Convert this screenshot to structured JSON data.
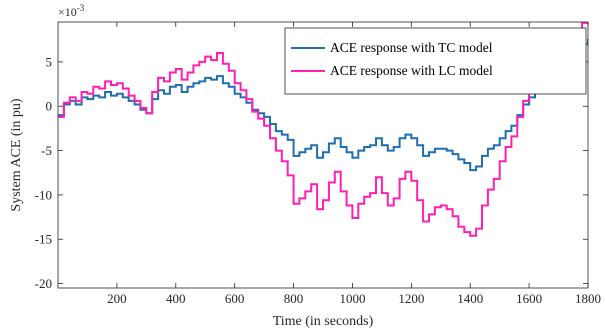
{
  "chart_data": {
    "type": "line",
    "title": "",
    "xlabel": "Time (in seconds)",
    "ylabel": "System ACE  (in pu)",
    "exponent": "×10",
    "exponent_power": "-3",
    "xlim": [
      0,
      1800
    ],
    "ylim": [
      -20.5,
      9.5
    ],
    "xticks": [
      200,
      400,
      600,
      800,
      1000,
      1200,
      1400,
      1600,
      1800
    ],
    "yticks": [
      -20,
      -15,
      -10,
      -5,
      0,
      5
    ],
    "grid": false,
    "legend_position": "top-right",
    "series": [
      {
        "name": "ACE response with TC model",
        "color": "#1f6fb0",
        "x": [
          0,
          20,
          40,
          60,
          80,
          100,
          120,
          140,
          160,
          180,
          200,
          220,
          240,
          260,
          280,
          300,
          320,
          340,
          360,
          380,
          400,
          420,
          440,
          460,
          480,
          500,
          520,
          540,
          560,
          580,
          600,
          620,
          640,
          660,
          680,
          700,
          720,
          740,
          760,
          780,
          800,
          820,
          840,
          860,
          880,
          900,
          920,
          940,
          960,
          980,
          1000,
          1020,
          1040,
          1060,
          1080,
          1100,
          1120,
          1140,
          1160,
          1180,
          1200,
          1220,
          1240,
          1260,
          1280,
          1300,
          1320,
          1340,
          1360,
          1380,
          1400,
          1420,
          1440,
          1460,
          1480,
          1500,
          1520,
          1540,
          1560,
          1580,
          1600,
          1620,
          1640,
          1660,
          1680,
          1700,
          1720,
          1740,
          1760,
          1780,
          1800
        ],
        "values": [
          -1.0,
          0.2,
          0.6,
          0.2,
          1.0,
          0.8,
          1.2,
          1.0,
          1.6,
          1.2,
          1.4,
          1.0,
          0.6,
          0.2,
          -0.4,
          -0.8,
          0.8,
          1.8,
          1.4,
          2.2,
          2.4,
          1.6,
          2.2,
          2.6,
          2.8,
          3.2,
          3.0,
          3.4,
          2.6,
          2.2,
          1.4,
          1.0,
          0.4,
          -0.4,
          -0.8,
          -1.2,
          -2.0,
          -2.8,
          -3.2,
          -3.8,
          -5.6,
          -5.2,
          -4.8,
          -4.4,
          -5.8,
          -5.2,
          -4.2,
          -3.6,
          -4.6,
          -5.2,
          -5.8,
          -5.0,
          -4.6,
          -4.4,
          -3.6,
          -4.4,
          -5.0,
          -4.6,
          -3.6,
          -3.2,
          -3.6,
          -4.4,
          -5.6,
          -5.2,
          -4.8,
          -4.8,
          -5.0,
          -5.4,
          -6.0,
          -6.4,
          -7.2,
          -6.8,
          -5.6,
          -4.8,
          -4.4,
          -3.6,
          -2.8,
          -2.2,
          -1.0,
          0.2,
          1.0,
          1.8,
          2.0,
          2.4,
          3.0,
          3.8,
          4.4,
          5.0,
          6.0,
          7.0,
          7.6
        ]
      },
      {
        "name": "ACE response with LC model",
        "color": "#ff1fb4",
        "x": [
          0,
          20,
          40,
          60,
          80,
          100,
          120,
          140,
          160,
          180,
          200,
          220,
          240,
          260,
          280,
          300,
          320,
          340,
          360,
          380,
          400,
          420,
          440,
          460,
          480,
          500,
          520,
          540,
          560,
          580,
          600,
          620,
          640,
          660,
          680,
          700,
          720,
          740,
          760,
          780,
          800,
          820,
          840,
          860,
          880,
          900,
          920,
          940,
          960,
          980,
          1000,
          1020,
          1040,
          1060,
          1080,
          1100,
          1120,
          1140,
          1160,
          1180,
          1200,
          1220,
          1240,
          1260,
          1280,
          1300,
          1320,
          1340,
          1360,
          1380,
          1400,
          1420,
          1440,
          1460,
          1480,
          1500,
          1520,
          1540,
          1560,
          1580,
          1600,
          1620,
          1640,
          1660,
          1680,
          1700,
          1720,
          1740,
          1760,
          1780,
          1800
        ],
        "values": [
          -1.2,
          0.4,
          1.0,
          0.6,
          1.6,
          1.4,
          2.2,
          2.0,
          2.8,
          2.4,
          2.6,
          2.0,
          1.2,
          0.6,
          -0.2,
          -0.8,
          1.6,
          3.2,
          2.8,
          3.8,
          4.2,
          3.0,
          3.8,
          4.6,
          5.0,
          5.6,
          5.2,
          6.0,
          4.8,
          4.0,
          2.6,
          1.8,
          0.8,
          -0.6,
          -1.4,
          -2.2,
          -3.6,
          -5.0,
          -6.2,
          -7.8,
          -11.0,
          -10.4,
          -9.6,
          -8.8,
          -11.6,
          -10.6,
          -8.6,
          -7.4,
          -9.6,
          -11.2,
          -12.6,
          -11.0,
          -10.2,
          -9.8,
          -8.0,
          -9.8,
          -11.2,
          -10.4,
          -8.2,
          -7.4,
          -8.4,
          -10.6,
          -13.0,
          -12.2,
          -11.4,
          -11.2,
          -11.6,
          -12.4,
          -13.6,
          -14.2,
          -14.6,
          -13.8,
          -11.2,
          -9.4,
          -8.2,
          -6.2,
          -4.6,
          -3.4,
          -1.2,
          0.6,
          1.8,
          2.8,
          2.8,
          3.2,
          3.8,
          4.6,
          5.6,
          6.6,
          8.2,
          9.4,
          10.0
        ]
      }
    ]
  }
}
